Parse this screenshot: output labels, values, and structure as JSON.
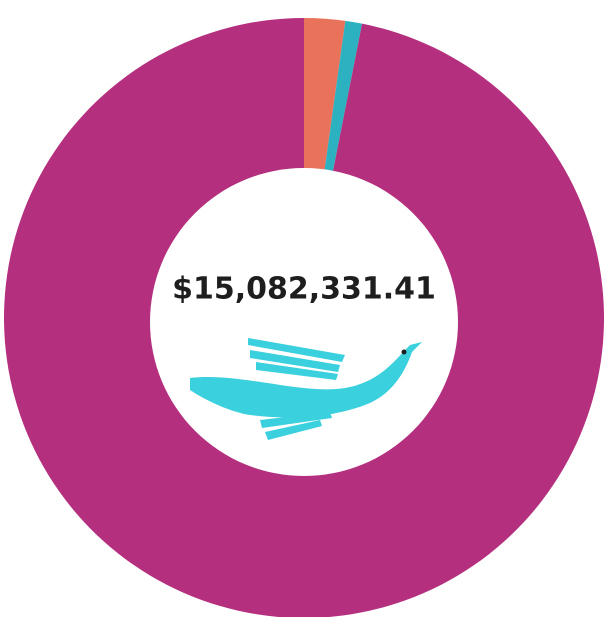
{
  "chart_data": {
    "type": "donut",
    "center_label": "$15,082,331.41",
    "values": [
      2.2,
      0.9,
      96.9
    ],
    "colors": [
      "#e8735a",
      "#2bb1c0",
      "#b52f7f"
    ]
  }
}
